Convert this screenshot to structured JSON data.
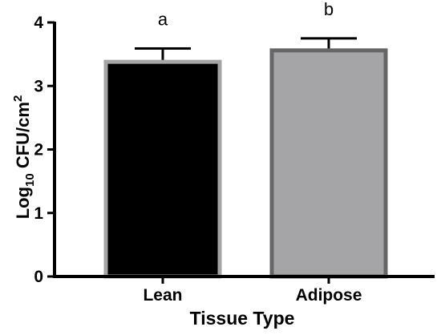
{
  "chart_data": {
    "type": "bar",
    "categories": [
      "Lean",
      "Adipose"
    ],
    "values": [
      3.38,
      3.56
    ],
    "errors": [
      0.21,
      0.19
    ],
    "annotations": [
      "a",
      "b"
    ],
    "bar_fill_colors": [
      "#000000",
      "#a5a5a7"
    ],
    "bar_edge_colors": [
      "#a5a5a7",
      "#666666"
    ],
    "xlabel": "Tissue Type",
    "ylabel": {
      "prefix": "Log",
      "subscript": "10",
      "middle": " CFU/cm",
      "superscript": "2"
    },
    "ylim": [
      0,
      4
    ],
    "yticks": [
      "0",
      "1",
      "2",
      "3",
      "4"
    ],
    "grid": false
  }
}
